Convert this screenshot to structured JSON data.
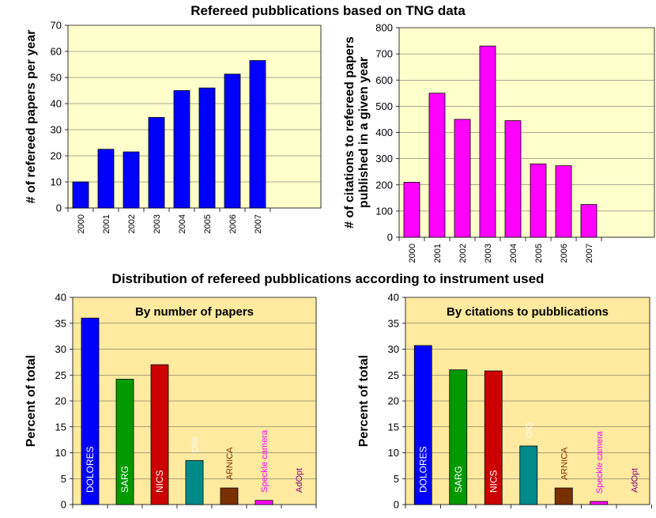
{
  "headings": {
    "top": "Refereed pubblications based on TNG data",
    "bottom": "Distribution of refereed pubblications according to instrument used"
  },
  "colors": {
    "plot_bg": "#ffffcc",
    "panel_bg": "#ffeaa0",
    "blue": "#0000ff",
    "magenta": "#ff00ff"
  },
  "chart_data": [
    {
      "type": "bar",
      "categories": [
        "2000",
        "2001",
        "2002",
        "2003",
        "2004",
        "2005",
        "2006",
        "2007"
      ],
      "values": [
        10,
        22.5,
        21.5,
        34.7,
        45,
        46,
        51.3,
        56.5
      ],
      "ylabel": "# of refereed papers per year",
      "ylim": [
        0,
        70
      ],
      "yticks": [
        0,
        10,
        20,
        30,
        40,
        50,
        60,
        70
      ],
      "color": "#0000ff",
      "grid": true
    },
    {
      "type": "bar",
      "categories": [
        "2000",
        "2001",
        "2002",
        "2003",
        "2004",
        "2005",
        "2006",
        "2007"
      ],
      "values": [
        210,
        550,
        450,
        730,
        445,
        280,
        273,
        125
      ],
      "ylabel": [
        "# of citations to refereed papers",
        "published in a given year"
      ],
      "ylim": [
        0,
        800
      ],
      "yticks": [
        0,
        100,
        200,
        300,
        400,
        500,
        600,
        700,
        800
      ],
      "color": "#ff00ff",
      "grid": true
    },
    {
      "type": "bar",
      "title": "By number of papers",
      "categories": [
        "DOLORES",
        "SARG",
        "NICS",
        "OIG",
        "ARNICA",
        "Speckle camera",
        "AdOpt"
      ],
      "values": [
        36,
        24.2,
        27,
        8.5,
        3.2,
        0.8,
        0
      ],
      "colors": [
        "#0000ff",
        "#009900",
        "#cc0000",
        "#008b8b",
        "#7a3000",
        "#ff00ff",
        "#800080"
      ],
      "label_colors": [
        "#ffffff",
        "#ffffff",
        "#ffffff",
        "#ffffff",
        "#7a3000",
        "#ff00ff",
        "#800080"
      ],
      "ylabel": "Percent of total",
      "ylim": [
        0,
        40
      ],
      "yticks": [
        0,
        5,
        10,
        15,
        20,
        25,
        30,
        35,
        40
      ],
      "grid": true
    },
    {
      "type": "bar",
      "title": "By citations to pubblications",
      "categories": [
        "DOLORES",
        "SARG",
        "NICS",
        "OIG",
        "ARNICA",
        "Speckle camera",
        "AdOpt"
      ],
      "values": [
        30.7,
        26,
        25.8,
        11.3,
        3.2,
        0.6,
        0
      ],
      "colors": [
        "#0000ff",
        "#009900",
        "#cc0000",
        "#008b8b",
        "#7a3000",
        "#ff00ff",
        "#800080"
      ],
      "label_colors": [
        "#ffffff",
        "#ffffff",
        "#ffffff",
        "#ffffff",
        "#7a3000",
        "#ff00ff",
        "#800080"
      ],
      "ylabel": "Percent of total",
      "ylim": [
        0,
        40
      ],
      "yticks": [
        0,
        5,
        10,
        15,
        20,
        25,
        30,
        35,
        40
      ],
      "grid": true
    }
  ]
}
